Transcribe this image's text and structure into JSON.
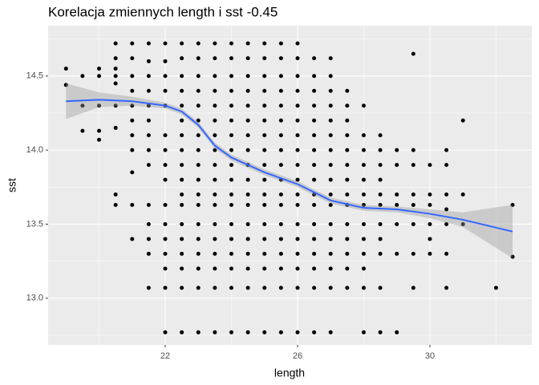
{
  "chart_data": {
    "type": "scatter",
    "title": "Korelacja zmiennych length i sst -0.45",
    "x_label": "length",
    "y_label": "sst",
    "color": "#000000",
    "smooth_color": "#3366ff",
    "band_color": "#999999",
    "xlim": [
      18.46,
      33.08
    ],
    "ylim": [
      12.685,
      14.84
    ],
    "xticks": [
      22,
      26,
      30
    ],
    "yticks": [
      {
        "value": 13,
        "label": "13.0"
      },
      13.5,
      {
        "value": 14,
        "label": "14.0"
      },
      14.5
    ],
    "grid": true,
    "x": [
      19,
      19,
      19.5,
      19.5,
      19.5,
      20,
      20,
      20,
      20,
      20,
      20.5,
      20.5,
      20.5,
      20.5,
      20.5,
      20.5,
      20.5,
      20.5,
      20.5,
      21,
      21,
      21,
      21,
      21,
      21,
      21,
      21,
      21,
      21,
      21,
      21.5,
      21.5,
      21.5,
      21.5,
      21.5,
      21.5,
      21.5,
      21.5,
      21.5,
      21.5,
      21.5,
      21.5,
      21.5,
      21.5,
      22,
      22,
      22,
      22,
      22,
      22,
      22,
      22,
      22,
      22,
      22,
      22,
      22,
      22,
      22,
      22,
      22.5,
      22.5,
      22.5,
      22.5,
      22.5,
      22.5,
      22.5,
      22.5,
      22.5,
      22.5,
      22.5,
      22.5,
      22.5,
      22.5,
      22.5,
      22.5,
      22.5,
      22.5,
      23,
      23,
      23,
      23,
      23,
      23,
      23,
      23,
      23,
      23,
      23,
      23,
      23,
      23,
      23,
      23,
      23,
      23,
      23.5,
      23.5,
      23.5,
      23.5,
      23.5,
      23.5,
      23.5,
      23.5,
      23.5,
      23.5,
      23.5,
      23.5,
      23.5,
      23.5,
      23.5,
      23.5,
      23.5,
      23.5,
      24,
      24,
      24,
      24,
      24,
      24,
      24,
      24,
      24,
      24,
      24,
      24,
      24,
      24,
      24,
      24,
      24,
      24,
      24.5,
      24.5,
      24.5,
      24.5,
      24.5,
      24.5,
      24.5,
      24.5,
      24.5,
      24.5,
      24.5,
      24.5,
      24.5,
      24.5,
      24.5,
      24.5,
      24.5,
      24.5,
      25,
      25,
      25,
      25,
      25,
      25,
      25,
      25,
      25,
      25,
      25,
      25,
      25,
      25,
      25,
      25,
      25,
      25,
      25.5,
      25.5,
      25.5,
      25.5,
      25.5,
      25.5,
      25.5,
      25.5,
      25.5,
      25.5,
      25.5,
      25.5,
      25.5,
      25.5,
      25.5,
      25.5,
      25.5,
      25.5,
      26,
      26,
      26,
      26,
      26,
      26,
      26,
      26,
      26,
      26,
      26,
      26,
      26,
      26,
      26,
      26,
      26,
      26,
      26.5,
      26.5,
      26.5,
      26.5,
      26.5,
      26.5,
      26.5,
      26.5,
      26.5,
      26.5,
      26.5,
      26.5,
      26.5,
      26.5,
      26.5,
      26.5,
      26.5,
      27,
      27,
      27,
      27,
      27,
      27,
      27,
      27,
      27,
      27,
      27,
      27,
      27,
      27,
      27,
      27,
      27,
      27.5,
      27.5,
      27.5,
      27.5,
      27.5,
      27.5,
      27.5,
      27.5,
      27.5,
      27.5,
      27.5,
      27.5,
      27.5,
      27.5,
      28,
      28,
      28,
      28,
      28,
      28,
      28,
      28,
      28,
      28,
      28,
      28,
      28,
      28.5,
      28.5,
      28.5,
      28.5,
      28.5,
      28.5,
      28.5,
      28.5,
      28.5,
      28.5,
      28.5,
      29,
      29,
      29,
      29,
      29,
      29,
      29,
      29.5,
      29.5,
      29.5,
      29.5,
      29.5,
      29.5,
      29.5,
      29.5,
      30,
      30,
      30,
      30,
      30,
      30,
      30.5,
      30.5,
      30.5,
      30.5,
      30.5,
      30.5,
      30.5,
      31,
      31,
      31,
      32,
      32.5,
      32.5
    ],
    "values": [
      14.55,
      14.44,
      14.5,
      14.3,
      14.13,
      14.55,
      14.5,
      14.3,
      14.13,
      14.07,
      14.72,
      14.62,
      14.55,
      14.5,
      14.45,
      14.3,
      14.15,
      13.7,
      13.63,
      14.72,
      14.62,
      14.5,
      14.4,
      14.3,
      14.2,
      14.1,
      14.0,
      13.85,
      13.63,
      13.4,
      14.72,
      14.6,
      14.5,
      14.4,
      14.3,
      14.2,
      14.1,
      14.0,
      13.9,
      13.63,
      13.5,
      13.4,
      13.3,
      13.07,
      14.72,
      14.6,
      14.5,
      14.4,
      14.3,
      14.1,
      14.0,
      13.9,
      13.8,
      13.63,
      13.5,
      13.4,
      13.3,
      13.2,
      13.07,
      12.77,
      14.72,
      14.62,
      14.5,
      14.4,
      14.3,
      14.2,
      14.1,
      14.0,
      13.9,
      13.8,
      13.7,
      13.63,
      13.5,
      13.4,
      13.3,
      13.2,
      13.07,
      12.77,
      14.72,
      14.62,
      14.5,
      14.4,
      14.3,
      14.2,
      14.1,
      14.0,
      13.9,
      13.8,
      13.7,
      13.63,
      13.5,
      13.4,
      13.3,
      13.2,
      13.07,
      12.77,
      14.72,
      14.62,
      14.5,
      14.4,
      14.3,
      14.2,
      14.1,
      14.0,
      13.9,
      13.8,
      13.7,
      13.63,
      13.5,
      13.4,
      13.3,
      13.2,
      13.07,
      12.77,
      14.72,
      14.62,
      14.5,
      14.4,
      14.3,
      14.2,
      14.1,
      14.0,
      13.9,
      13.8,
      13.7,
      13.63,
      13.5,
      13.4,
      13.3,
      13.2,
      13.07,
      12.77,
      14.72,
      14.62,
      14.5,
      14.4,
      14.3,
      14.2,
      14.1,
      14.0,
      13.9,
      13.8,
      13.7,
      13.63,
      13.5,
      13.4,
      13.3,
      13.2,
      13.07,
      12.77,
      14.72,
      14.62,
      14.5,
      14.4,
      14.3,
      14.2,
      14.1,
      14.0,
      13.9,
      13.8,
      13.7,
      13.63,
      13.5,
      13.4,
      13.3,
      13.2,
      13.07,
      12.77,
      14.72,
      14.62,
      14.5,
      14.4,
      14.3,
      14.2,
      14.1,
      14.0,
      13.9,
      13.8,
      13.7,
      13.63,
      13.5,
      13.4,
      13.3,
      13.2,
      13.07,
      12.77,
      14.72,
      14.62,
      14.5,
      14.4,
      14.3,
      14.2,
      14.1,
      14.0,
      13.9,
      13.8,
      13.7,
      13.63,
      13.5,
      13.4,
      13.3,
      13.2,
      13.07,
      12.77,
      14.62,
      14.5,
      14.4,
      14.3,
      14.2,
      14.1,
      14.0,
      13.9,
      13.8,
      13.7,
      13.63,
      13.5,
      13.4,
      13.3,
      13.2,
      13.07,
      12.77,
      14.62,
      14.5,
      14.4,
      14.3,
      14.2,
      14.1,
      14.0,
      13.9,
      13.8,
      13.7,
      13.63,
      13.5,
      13.4,
      13.3,
      13.2,
      13.07,
      12.77,
      14.4,
      14.3,
      14.2,
      14.1,
      14.0,
      13.9,
      13.8,
      13.7,
      13.63,
      13.5,
      13.4,
      13.3,
      13.2,
      13.07,
      14.3,
      14.1,
      14.0,
      13.9,
      13.8,
      13.7,
      13.63,
      13.5,
      13.4,
      13.3,
      13.2,
      13.07,
      12.77,
      14.1,
      14.0,
      13.9,
      13.8,
      13.7,
      13.63,
      13.5,
      13.4,
      13.3,
      13.07,
      12.77,
      14.0,
      13.9,
      13.7,
      13.63,
      13.5,
      13.3,
      12.77,
      14.65,
      14.0,
      13.9,
      13.7,
      13.63,
      13.5,
      13.3,
      13.07,
      13.9,
      13.7,
      13.63,
      13.5,
      13.4,
      13.3,
      14.0,
      13.9,
      13.7,
      13.6,
      13.5,
      13.3,
      13.07,
      14.2,
      13.7,
      13.5,
      13.07,
      13.63,
      13.28
    ],
    "smooth_x": [
      19,
      20,
      21,
      22,
      22.5,
      23,
      23.5,
      24,
      25,
      26,
      27,
      28,
      29,
      30,
      31,
      32.5
    ],
    "smooth_values": [
      14.33,
      14.34,
      14.33,
      14.3,
      14.26,
      14.17,
      14.03,
      13.95,
      13.85,
      13.77,
      13.66,
      13.61,
      13.6,
      13.57,
      13.53,
      13.45
    ],
    "smooth_upper": [
      14.45,
      14.39,
      14.36,
      14.32,
      14.28,
      14.19,
      14.05,
      13.97,
      13.87,
      13.79,
      13.68,
      13.63,
      13.62,
      13.6,
      13.58,
      13.63
    ],
    "smooth_lower": [
      14.21,
      14.29,
      14.3,
      14.28,
      14.24,
      14.15,
      14.01,
      13.93,
      13.83,
      13.75,
      13.64,
      13.59,
      13.58,
      13.54,
      13.48,
      13.27
    ]
  }
}
